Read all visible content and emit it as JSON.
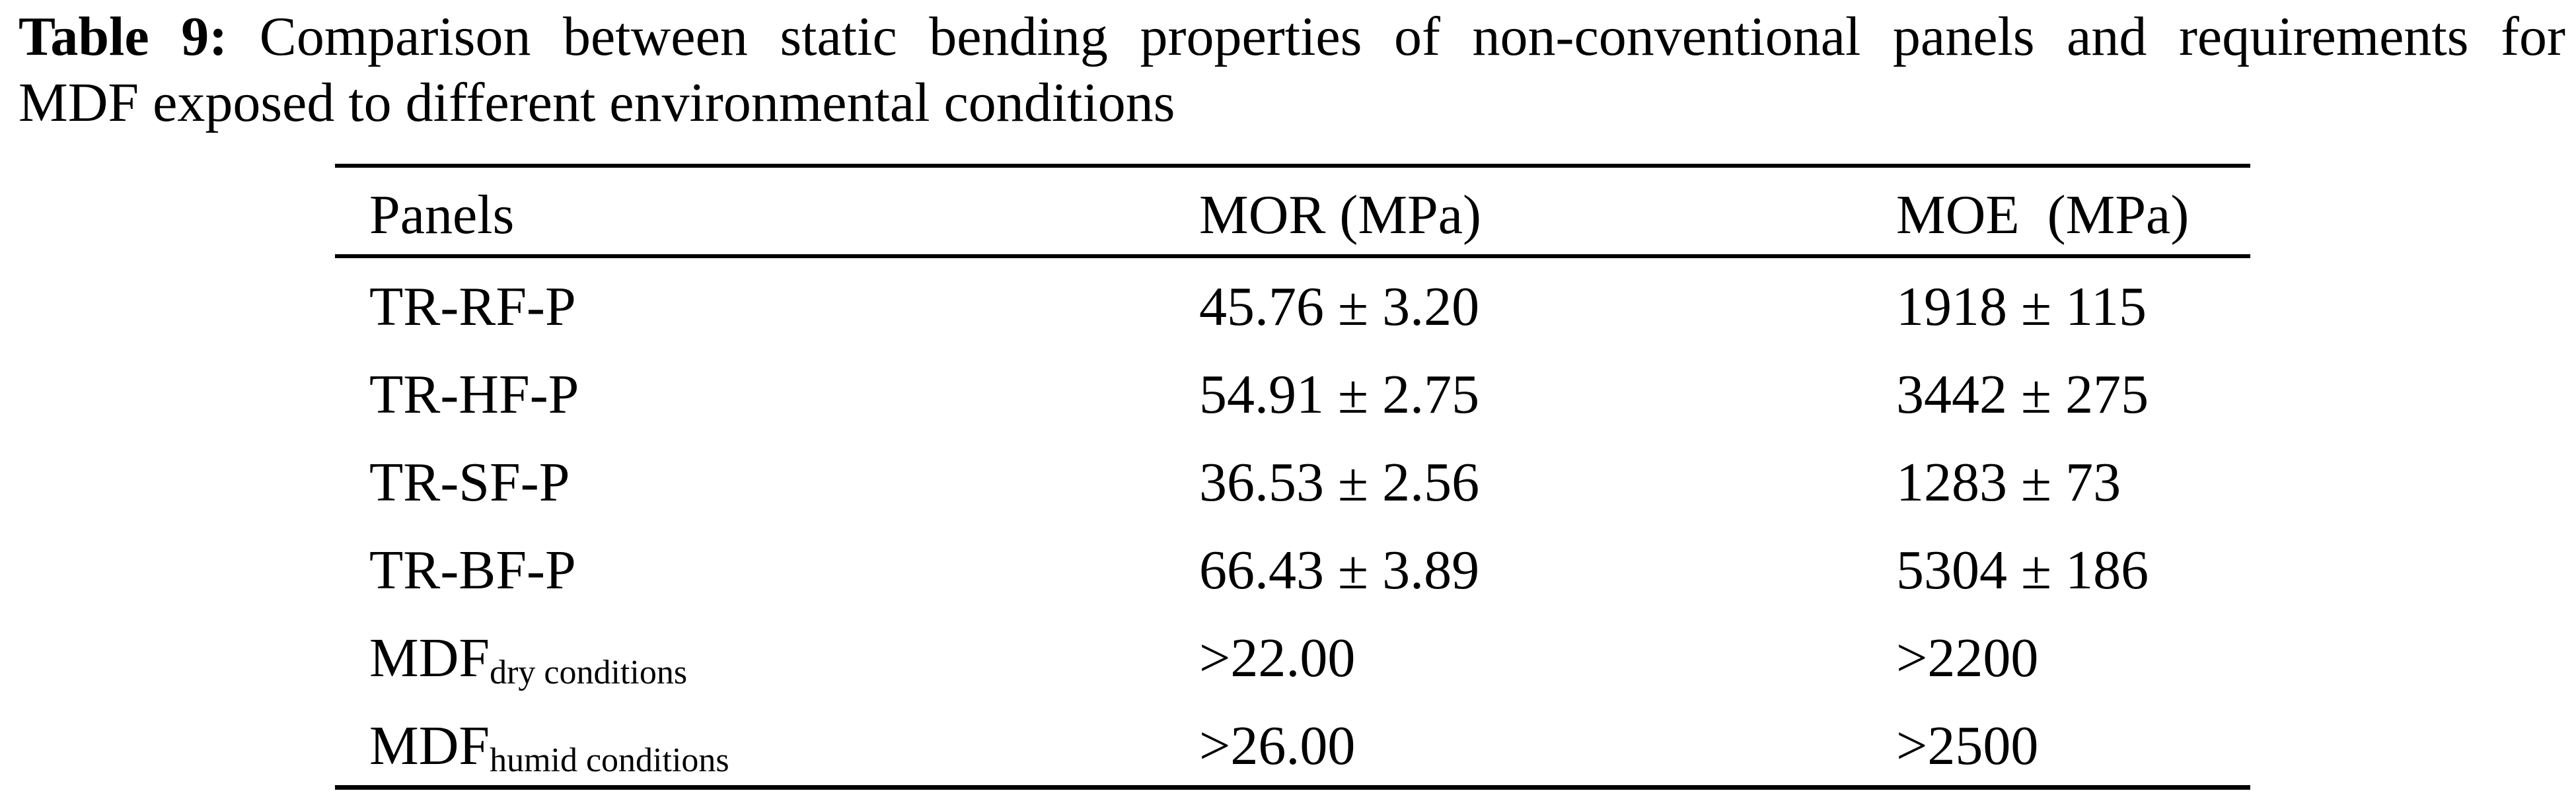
{
  "colors": {
    "text": "#000000",
    "background": "#ffffff"
  },
  "caption": {
    "label": "Table 9:",
    "line1_rest": " Comparison between static bending properties of non-conventional panels and requirements for",
    "line2": "MDF exposed to different environmental conditions"
  },
  "table": {
    "columns": {
      "panels": "Panels",
      "mor": "MOR (MPa)",
      "moe": "MOE  (MPa)"
    },
    "rows": [
      {
        "panel": "TR-RF-P",
        "panel_subscript": "",
        "mor": "45.76 ± 3.20",
        "moe": "1918 ± 115"
      },
      {
        "panel": "TR-HF-P",
        "panel_subscript": "",
        "mor": "54.91 ± 2.75",
        "moe": "3442 ± 275"
      },
      {
        "panel": "TR-SF-P",
        "panel_subscript": "",
        "mor": "36.53 ± 2.56",
        "moe": "1283 ± 73"
      },
      {
        "panel": "TR-BF-P",
        "panel_subscript": "",
        "mor": "66.43 ± 3.89",
        "moe": "5304 ± 186"
      },
      {
        "panel": "MDF",
        "panel_subscript": "dry conditions",
        "mor": ">22.00",
        "moe": ">2200"
      },
      {
        "panel": "MDF",
        "panel_subscript": "humid conditions",
        "mor": ">26.00",
        "moe": ">2500"
      }
    ]
  }
}
